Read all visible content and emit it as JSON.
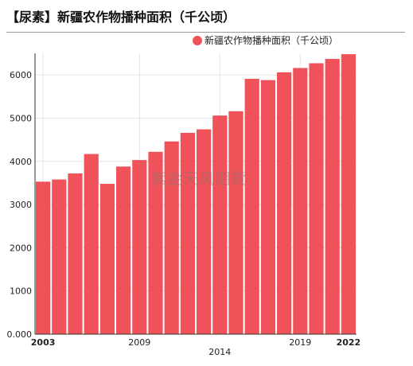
{
  "title": "【尿素】新疆农作物播种面积（千公顷）",
  "watermark": "紫金天风期货",
  "chart_data": {
    "type": "bar",
    "categories": [
      "2003",
      "2004",
      "2005",
      "2006",
      "2007",
      "2008",
      "2009",
      "2010",
      "2011",
      "2012",
      "2013",
      "2014",
      "2015",
      "2016",
      "2017",
      "2018",
      "2019",
      "2020",
      "2021",
      "2022"
    ],
    "series": [
      {
        "name": "新疆农作物播种面积（千公顷）",
        "color": "#ef5359",
        "values": [
          3530,
          3580,
          3720,
          4170,
          3480,
          3880,
          4030,
          4220,
          4460,
          4660,
          4740,
          5060,
          5160,
          5910,
          5880,
          6060,
          6160,
          6270,
          6370,
          6480
        ]
      }
    ],
    "x_tick_labels": [
      "2003",
      "2009",
      "2014",
      "2019",
      "2022"
    ],
    "y_tick_labels": [
      "0.000",
      "1000",
      "2000",
      "3000",
      "4000",
      "5000",
      "6000"
    ],
    "ylim": [
      0,
      6500
    ],
    "grid": true,
    "legend_position": "top-right"
  }
}
